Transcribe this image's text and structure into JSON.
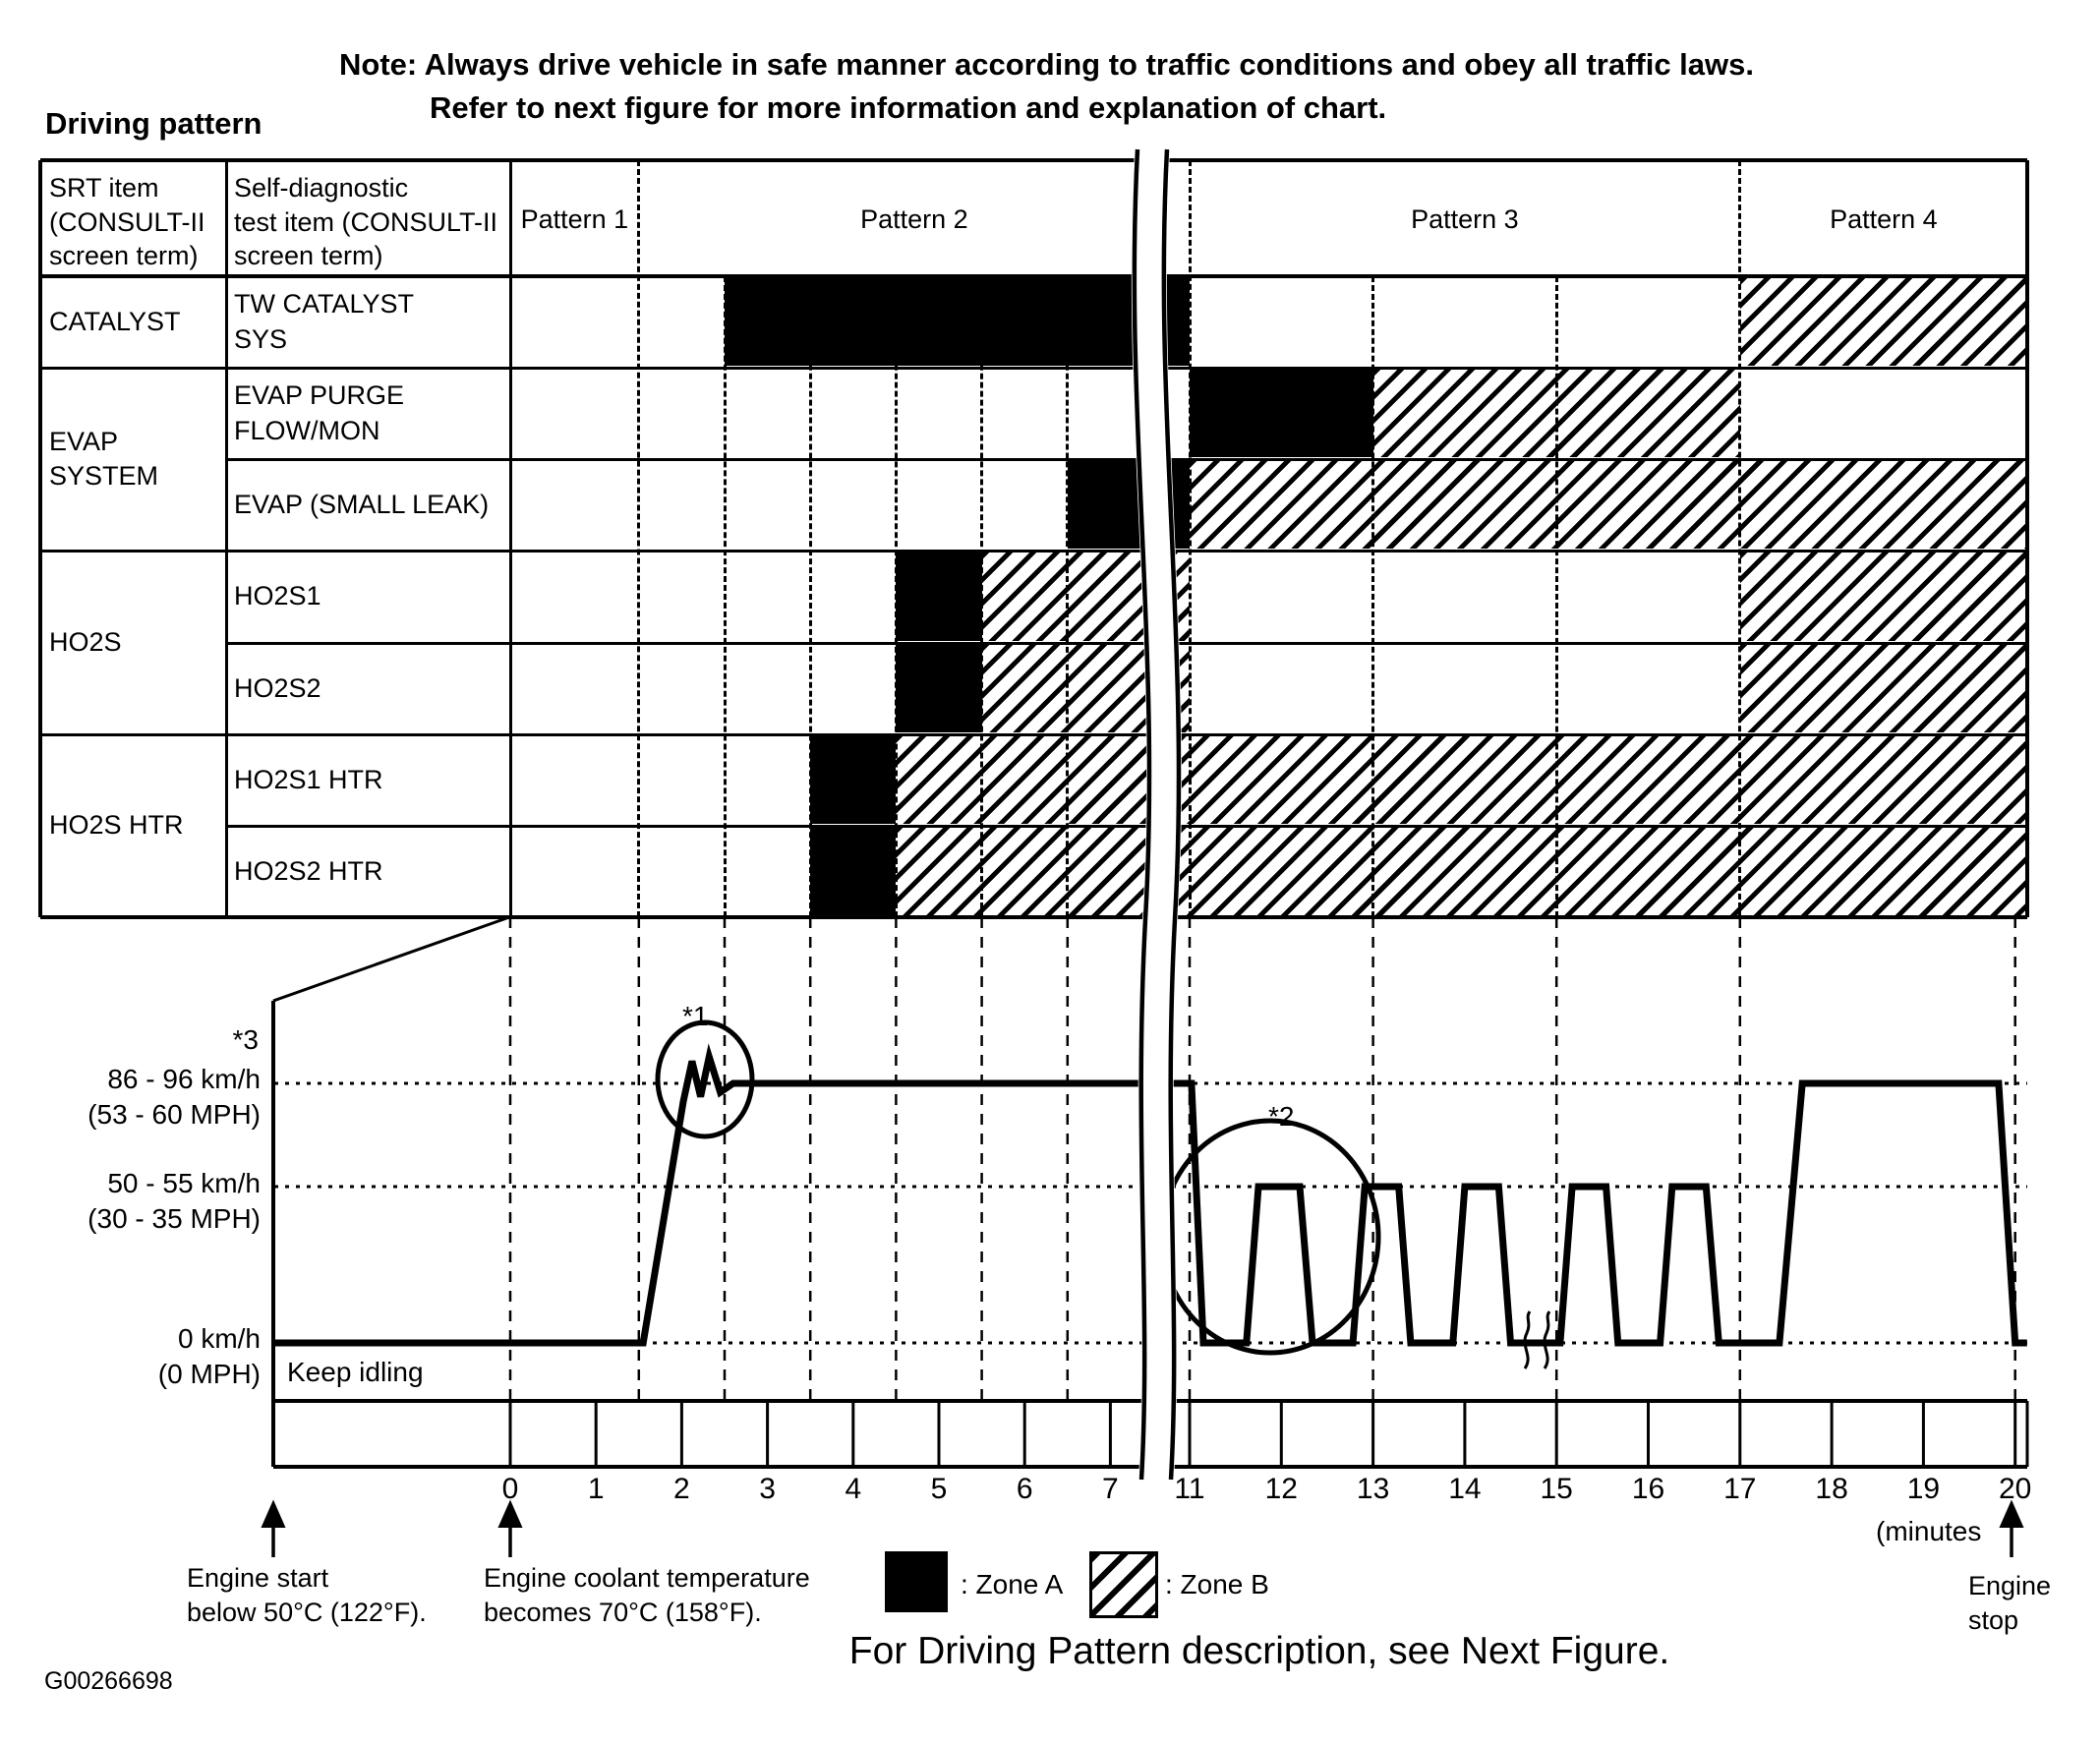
{
  "header": {
    "title": "Driving pattern",
    "note_line1": "Note: Always drive vehicle in safe manner according to traffic conditions and obey all traffic laws.",
    "note_line2": "Refer to next figure for more information and explanation of chart."
  },
  "table": {
    "srt_header": "SRT item\n(CONSULT-II\nscreen term)",
    "test_header": "Self-diagnostic\ntest item (CONSULT-II\nscreen term)"
  },
  "graph": {
    "speed_labels": [
      "86 - 96 km/h\n(53 - 60 MPH)",
      "50 - 55 km/h\n(30 - 35 MPH)",
      "0 km/h\n(0 MPH)"
    ],
    "star1": "*1",
    "star2": "*2",
    "star3": "*3",
    "keep_idling": "Keep idling",
    "minutes_label": "(minutes"
  },
  "legend": {
    "zone_a": ": Zone A",
    "zone_b": ": Zone B"
  },
  "callouts": {
    "engine_start": "Engine start\nbelow 50°C (122°F).",
    "coolant": "Engine coolant temperature\nbecomes 70°C (158°F).",
    "engine_stop": "Engine\nstop"
  },
  "footer": {
    "description": "For Driving Pattern description, see Next Figure.",
    "figure_code": "G00266698"
  },
  "chart_data": [
    {
      "type": "table",
      "title": "Driving pattern self-diagnostic readiness zones",
      "x_unit": "minutes",
      "x_ticks": [
        0,
        1,
        2,
        3,
        4,
        5,
        6,
        7,
        11,
        12,
        13,
        14,
        15,
        16,
        17,
        18,
        19,
        20
      ],
      "x_break_between": [
        7,
        11
      ],
      "grid_halfminute_lines": [
        2.5,
        3.5,
        4.5,
        5.5,
        6.5,
        13,
        15
      ],
      "patterns": [
        {
          "label": "Pattern 1",
          "from_min": 0,
          "to_min": 1.5
        },
        {
          "label": "Pattern 2",
          "from_min": 1.5,
          "to_min": 11
        },
        {
          "label": "Pattern 3",
          "from_min": 11,
          "to_min": 17
        },
        {
          "label": "Pattern 4",
          "from_min": 17,
          "to_min": 20.3
        }
      ],
      "groups": [
        {
          "label": "CATALYST",
          "rows": [
            0
          ]
        },
        {
          "label": "EVAP SYSTEM",
          "rows": [
            1,
            2
          ]
        },
        {
          "label": "HO2S",
          "rows": [
            3,
            4
          ]
        },
        {
          "label": "HO2S HTR",
          "rows": [
            5,
            6
          ]
        }
      ],
      "rows": [
        {
          "test_item": "TW CATALYST\nSYS",
          "zones": [
            {
              "zone": "A",
              "from_min": 2.5,
              "to_min": 11
            },
            {
              "zone": "B",
              "from_min": 17,
              "to_min": 20.3
            }
          ]
        },
        {
          "test_item": "EVAP PURGE\nFLOW/MON",
          "zones": [
            {
              "zone": "A",
              "from_min": 11,
              "to_min": 13
            },
            {
              "zone": "B",
              "from_min": 13,
              "to_min": 17
            }
          ]
        },
        {
          "test_item": "EVAP (SMALL LEAK)",
          "zones": [
            {
              "zone": "A",
              "from_min": 6.5,
              "to_min": 11
            },
            {
              "zone": "B",
              "from_min": 11,
              "to_min": 20.3
            }
          ]
        },
        {
          "test_item": "HO2S1",
          "zones": [
            {
              "zone": "A",
              "from_min": 4.5,
              "to_min": 5.5
            },
            {
              "zone": "B",
              "from_min": 5.5,
              "to_min": 11
            },
            {
              "zone": "B",
              "from_min": 17,
              "to_min": 20.3
            }
          ]
        },
        {
          "test_item": "HO2S2",
          "zones": [
            {
              "zone": "A",
              "from_min": 4.5,
              "to_min": 5.5
            },
            {
              "zone": "B",
              "from_min": 5.5,
              "to_min": 11
            },
            {
              "zone": "B",
              "from_min": 17,
              "to_min": 20.3
            }
          ]
        },
        {
          "test_item": "HO2S1 HTR",
          "zones": [
            {
              "zone": "A",
              "from_min": 3.5,
              "to_min": 4.5
            },
            {
              "zone": "B",
              "from_min": 4.5,
              "to_min": 20.3
            }
          ]
        },
        {
          "test_item": "HO2S2 HTR",
          "zones": [
            {
              "zone": "A",
              "from_min": 3.5,
              "to_min": 4.5
            },
            {
              "zone": "B",
              "from_min": 4.5,
              "to_min": 20.3
            }
          ]
        }
      ],
      "legend": [
        {
          "zone": "A",
          "style": "solid black",
          "label": "Zone A"
        },
        {
          "zone": "B",
          "style": "diagonal hatch",
          "label": "Zone B"
        }
      ]
    },
    {
      "type": "line",
      "title": "Vehicle speed vs. time",
      "x_unit": "minutes",
      "xlim": [
        -2.8,
        20.3
      ],
      "y_levels": [
        {
          "label": "86 - 96 km/h (53 - 60 MPH)",
          "value": 91
        },
        {
          "label": "50 - 55 km/h (30 - 35 MPH)",
          "value": 52.5
        },
        {
          "label": "0 km/h (0 MPH)",
          "value": 0
        }
      ],
      "annotations": [
        {
          "label": "*1",
          "at_min": 2.3,
          "on": "speed fluctuation circle"
        },
        {
          "label": "*2",
          "at_min": 12,
          "on": "first 50 - 55 km/h pulse circle"
        },
        {
          "label": "*3",
          "on": "86 - 96 km/h level"
        }
      ],
      "points": [
        [
          -2.77,
          0
        ],
        [
          1.55,
          0
        ],
        [
          2.02,
          87
        ],
        [
          2.12,
          96
        ],
        [
          2.22,
          88
        ],
        [
          2.32,
          97
        ],
        [
          2.45,
          89
        ],
        [
          2.6,
          91
        ],
        [
          11.02,
          91
        ],
        [
          11.15,
          0
        ],
        [
          11.62,
          0
        ],
        [
          11.75,
          52.5
        ],
        [
          12.2,
          52.5
        ],
        [
          12.34,
          0
        ],
        [
          12.78,
          0
        ],
        [
          12.91,
          52.5
        ],
        [
          13.28,
          52.5
        ],
        [
          13.41,
          0
        ],
        [
          13.87,
          0
        ],
        [
          14.0,
          52.5
        ],
        [
          14.37,
          52.5
        ],
        [
          14.5,
          0
        ],
        [
          15.04,
          0
        ],
        [
          15.17,
          52.5
        ],
        [
          15.54,
          52.5
        ],
        [
          15.67,
          0
        ],
        [
          16.13,
          0
        ],
        [
          16.26,
          52.5
        ],
        [
          16.63,
          52.5
        ],
        [
          16.77,
          0
        ],
        [
          17.43,
          0
        ],
        [
          17.68,
          91
        ],
        [
          19.82,
          91
        ],
        [
          20.0,
          0
        ],
        [
          20.13,
          0
        ]
      ]
    }
  ]
}
